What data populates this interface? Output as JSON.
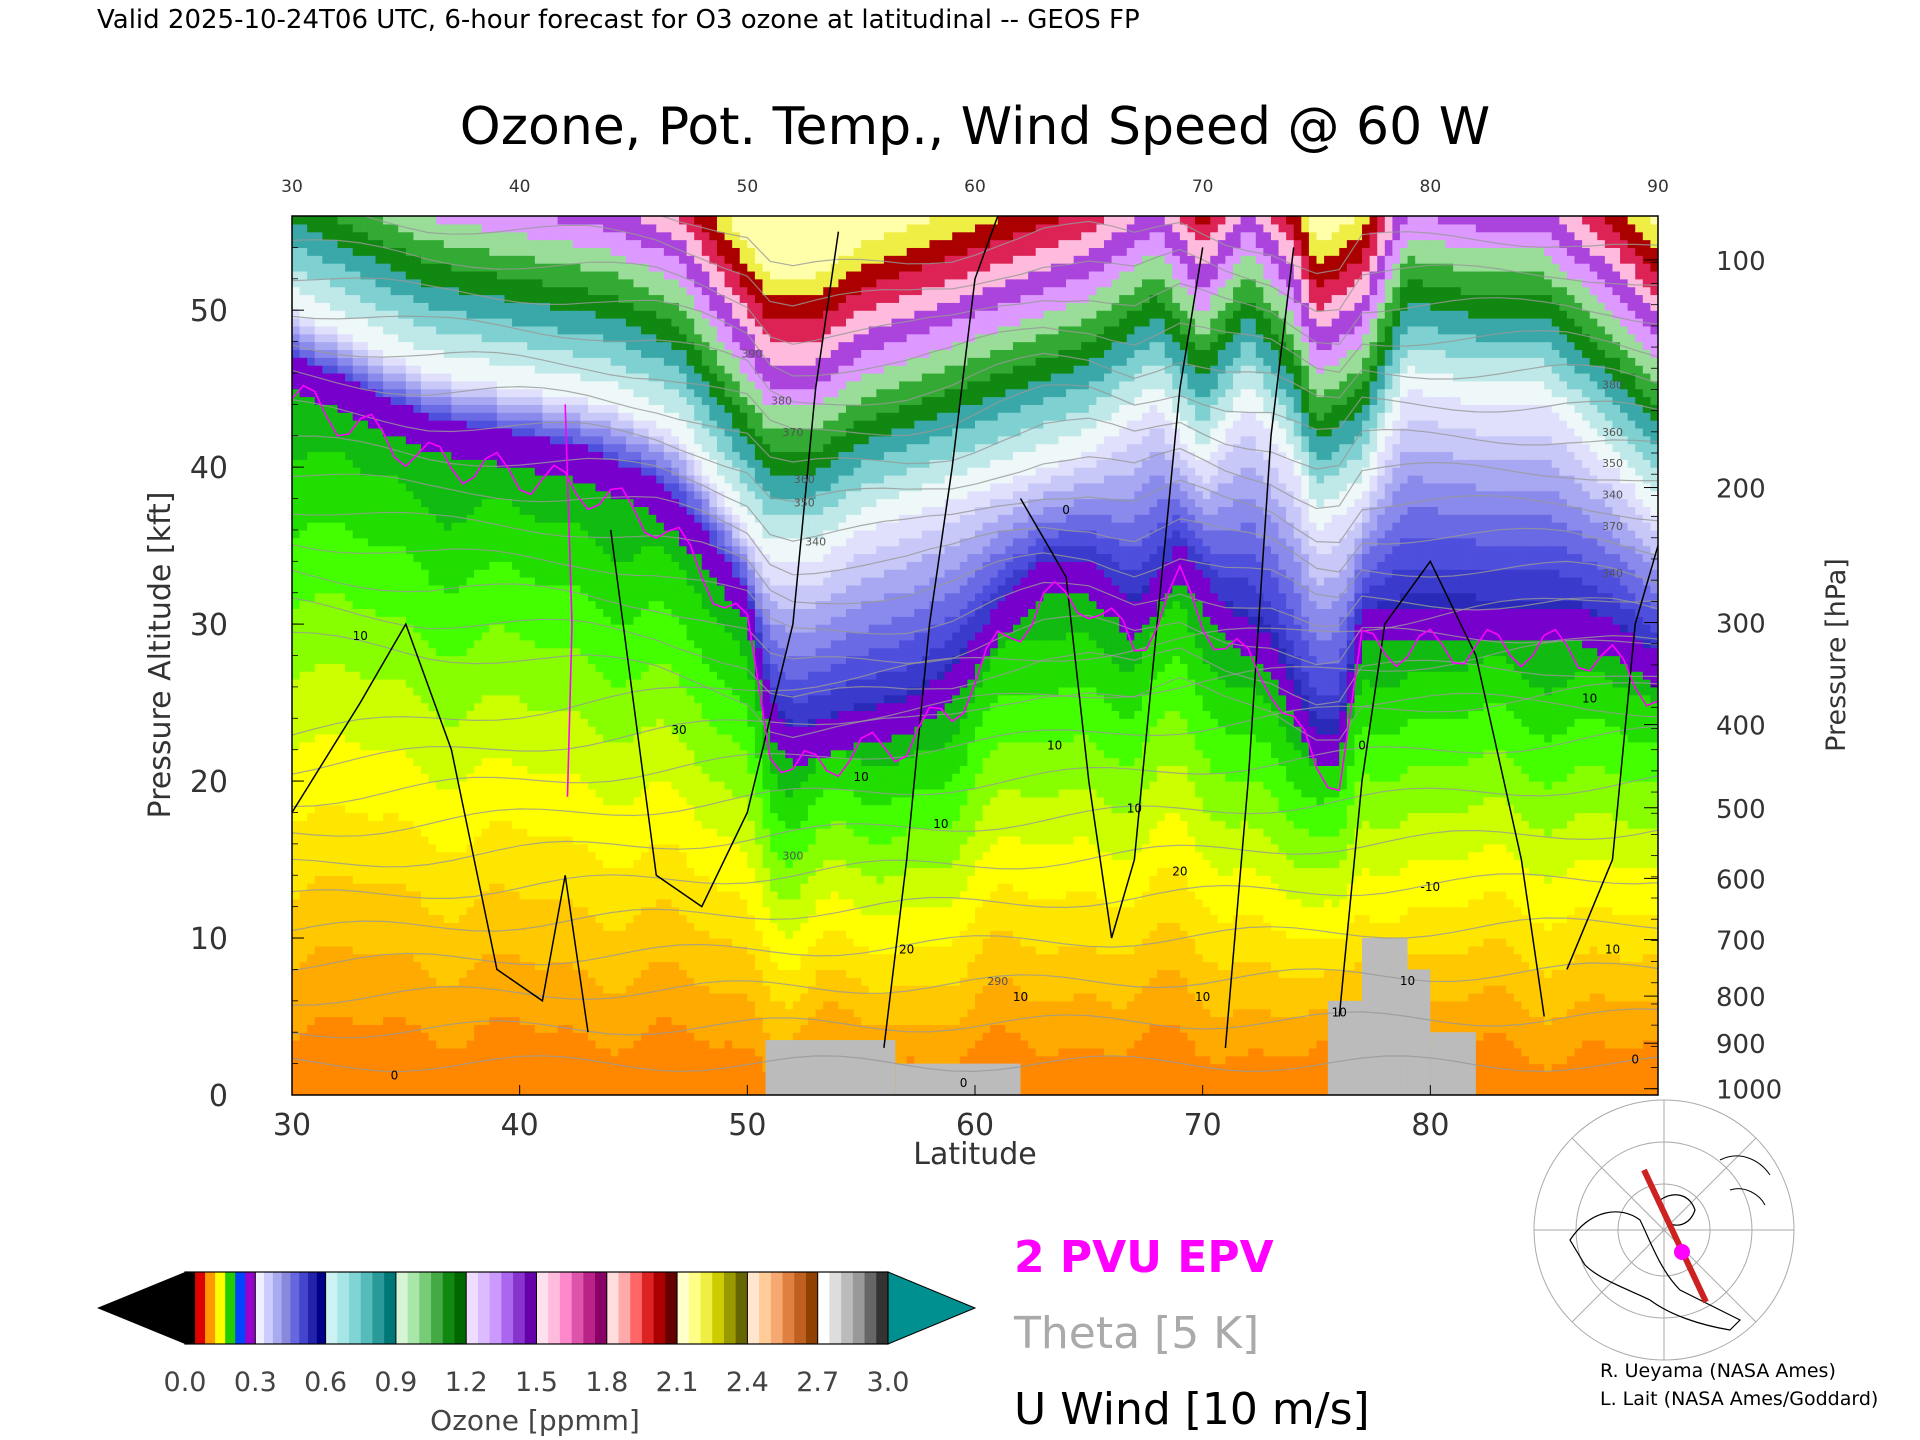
{
  "header": {
    "valid_line": "Valid 2025-10-24T06 UTC, 6-hour forecast for O3 ozone at latitudinal -- GEOS FP",
    "title": "Ozone, Pot. Temp., Wind Speed @ 60 W"
  },
  "chart_data": {
    "type": "heatmap",
    "title": "Ozone, Pot. Temp., Wind Speed @ 60 W",
    "xlabel": "Latitude",
    "ylabel": "Pressure Altitude [kft]",
    "y2label": "Pressure [hPa]",
    "xlim": [
      30,
      90
    ],
    "ylim": [
      0,
      56
    ],
    "x_ticks": [
      "30",
      "40",
      "50",
      "60",
      "70",
      "80",
      "90"
    ],
    "y_ticks": [
      "0",
      "10",
      "20",
      "30",
      "40",
      "50"
    ],
    "pressure_ticks": [
      {
        "label": "1000",
        "kft": 0.4
      },
      {
        "label": "900",
        "kft": 3.3
      },
      {
        "label": "800",
        "kft": 6.3
      },
      {
        "label": "700",
        "kft": 9.9
      },
      {
        "label": "600",
        "kft": 13.8
      },
      {
        "label": "500",
        "kft": 18.3
      },
      {
        "label": "400",
        "kft": 23.6
      },
      {
        "label": "300",
        "kft": 30.1
      },
      {
        "label": "200",
        "kft": 38.7
      },
      {
        "label": "100",
        "kft": 53.2
      }
    ],
    "colorbar": {
      "label": "Ozone [ppmm]",
      "min": 0.0,
      "max": 3.0,
      "tick_labels": [
        "0.0",
        "0.3",
        "0.6",
        "0.9",
        "1.2",
        "1.5",
        "1.8",
        "2.1",
        "2.4",
        "2.7",
        "3.0"
      ],
      "blocks": [
        [
          "#000000",
          "#dd0000",
          "#ff9900",
          "#ffff00",
          "#22cc00",
          "#0044ff",
          "#9900cc"
        ],
        [
          "#eeeeff",
          "#ccccff",
          "#aaaaee",
          "#8888dd",
          "#6666dd",
          "#4444cc",
          "#2222aa",
          "#000088"
        ],
        [
          "#ccf2f2",
          "#a6e6e6",
          "#7fd4d4",
          "#55bbbb",
          "#2a9999",
          "#007777"
        ],
        [
          "#d6f5d6",
          "#a9e6a9",
          "#77cc77",
          "#44aa44",
          "#118811",
          "#006600"
        ],
        [
          "#eeddff",
          "#ddbbff",
          "#cc99ff",
          "#aa66ee",
          "#8833cc",
          "#6600aa"
        ],
        [
          "#ffe0ee",
          "#ffbbdd",
          "#ff88cc",
          "#dd55aa",
          "#bb2288",
          "#880066"
        ],
        [
          "#ffdddd",
          "#ffaaaa",
          "#ff6666",
          "#dd2222",
          "#aa0000",
          "#660000"
        ],
        [
          "#ffffcc",
          "#ffff88",
          "#eeee44",
          "#cccc00",
          "#999900",
          "#666600"
        ],
        [
          "#ffe6cc",
          "#ffcc99",
          "#f5a870",
          "#e08040",
          "#c06020",
          "#904000"
        ],
        [
          "#ffffff",
          "#dddddd",
          "#bbbbbb",
          "#999999",
          "#666666",
          "#333333"
        ]
      ],
      "under_color": "#000000",
      "over_color": "#009090"
    },
    "surface_blocks": [
      {
        "x0": 50.8,
        "x1": 56.5,
        "top": 3.5
      },
      {
        "x0": 56.5,
        "x1": 62.0,
        "top": 2.0
      },
      {
        "x0": 75.5,
        "x1": 77.0,
        "top": 6.0
      },
      {
        "x0": 77.0,
        "x1": 79.0,
        "top": 10.0
      },
      {
        "x0": 79.0,
        "x1": 80.0,
        "top": 8.0
      },
      {
        "x0": 80.0,
        "x1": 82.0,
        "top": 4.0
      }
    ],
    "contour_labels": {
      "wind": [
        "10",
        "0",
        "30",
        "10",
        "20",
        "10",
        "0",
        "10",
        "0",
        "10",
        "10",
        "20",
        "10",
        "10",
        "0",
        "10",
        "-10",
        "10",
        "10",
        "0"
      ],
      "theta": [
        "390",
        "380",
        "370",
        "360",
        "350",
        "340",
        "300",
        "290",
        "380",
        "360",
        "350",
        "340",
        "370",
        "340"
      ]
    },
    "legend": [
      {
        "label": "2 PVU EPV",
        "color": "#ff00ff"
      },
      {
        "label": "Theta [5 K]",
        "color": "#aaaaaa"
      },
      {
        "label": "U Wind [10 m/s]",
        "color": "#000000"
      }
    ]
  },
  "credits": {
    "line1": "R. Ueyama (NASA Ames)",
    "line2": "L. Lait (NASA Ames/Goddard)"
  },
  "inset_map": {
    "marker_color": "#ff00ff",
    "line_color": "#cc2222"
  }
}
